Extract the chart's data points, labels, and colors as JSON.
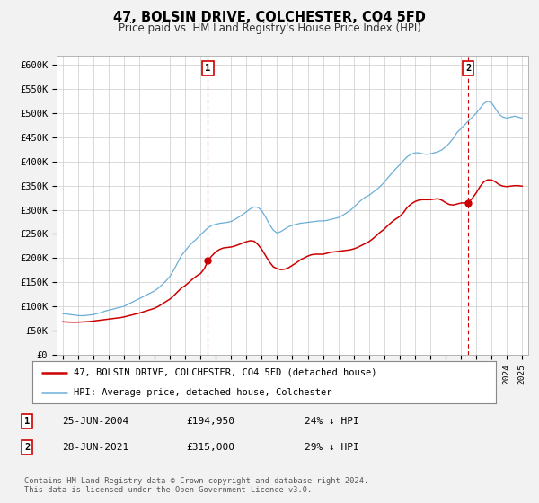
{
  "title": "47, BOLSIN DRIVE, COLCHESTER, CO4 5FD",
  "subtitle": "Price paid vs. HM Land Registry's House Price Index (HPI)",
  "xlim": [
    1994.6,
    2025.4
  ],
  "ylim": [
    0,
    620000
  ],
  "yticks": [
    0,
    50000,
    100000,
    150000,
    200000,
    250000,
    300000,
    350000,
    400000,
    450000,
    500000,
    550000,
    600000
  ],
  "ytick_labels": [
    "£0",
    "£50K",
    "£100K",
    "£150K",
    "£200K",
    "£250K",
    "£300K",
    "£350K",
    "£400K",
    "£450K",
    "£500K",
    "£550K",
    "£600K"
  ],
  "hpi_color": "#6baed6",
  "price_color": "#cc0000",
  "sale1_date": 2004.484,
  "sale1_price": 194950,
  "sale2_date": 2021.487,
  "sale2_price": 315000,
  "legend_label1": "47, BOLSIN DRIVE, COLCHESTER, CO4 5FD (detached house)",
  "legend_label2": "HPI: Average price, detached house, Colchester",
  "annotation1_label": "25-JUN-2004",
  "annotation1_price": "£194,950",
  "annotation1_pct": "24% ↓ HPI",
  "annotation2_label": "28-JUN-2021",
  "annotation2_price": "£315,000",
  "annotation2_pct": "29% ↓ HPI",
  "footer": "Contains HM Land Registry data © Crown copyright and database right 2024.\nThis data is licensed under the Open Government Licence v3.0.",
  "bg_color": "#f2f2f2",
  "plot_bg_color": "#ffffff",
  "grid_color": "#cccccc",
  "hpi_data": [
    [
      1995.0,
      85000
    ],
    [
      1995.25,
      84000
    ],
    [
      1995.5,
      83000
    ],
    [
      1995.75,
      82000
    ],
    [
      1996.0,
      81000
    ],
    [
      1996.25,
      80500
    ],
    [
      1996.5,
      81000
    ],
    [
      1996.75,
      82000
    ],
    [
      1997.0,
      83000
    ],
    [
      1997.25,
      85000
    ],
    [
      1997.5,
      87000
    ],
    [
      1997.75,
      90000
    ],
    [
      1998.0,
      92000
    ],
    [
      1998.25,
      94000
    ],
    [
      1998.5,
      96000
    ],
    [
      1998.75,
      98000
    ],
    [
      1999.0,
      100000
    ],
    [
      1999.25,
      104000
    ],
    [
      1999.5,
      108000
    ],
    [
      1999.75,
      112000
    ],
    [
      2000.0,
      116000
    ],
    [
      2000.25,
      120000
    ],
    [
      2000.5,
      124000
    ],
    [
      2000.75,
      128000
    ],
    [
      2001.0,
      132000
    ],
    [
      2001.25,
      138000
    ],
    [
      2001.5,
      145000
    ],
    [
      2001.75,
      153000
    ],
    [
      2002.0,
      162000
    ],
    [
      2002.25,
      175000
    ],
    [
      2002.5,
      190000
    ],
    [
      2002.75,
      205000
    ],
    [
      2003.0,
      215000
    ],
    [
      2003.25,
      225000
    ],
    [
      2003.5,
      233000
    ],
    [
      2003.75,
      240000
    ],
    [
      2004.0,
      248000
    ],
    [
      2004.25,
      256000
    ],
    [
      2004.5,
      263000
    ],
    [
      2004.75,
      268000
    ],
    [
      2005.0,
      270000
    ],
    [
      2005.25,
      272000
    ],
    [
      2005.5,
      273000
    ],
    [
      2005.75,
      274000
    ],
    [
      2006.0,
      276000
    ],
    [
      2006.25,
      280000
    ],
    [
      2006.5,
      285000
    ],
    [
      2006.75,
      290000
    ],
    [
      2007.0,
      296000
    ],
    [
      2007.25,
      302000
    ],
    [
      2007.5,
      306000
    ],
    [
      2007.75,
      305000
    ],
    [
      2008.0,
      298000
    ],
    [
      2008.25,
      285000
    ],
    [
      2008.5,
      270000
    ],
    [
      2008.75,
      258000
    ],
    [
      2009.0,
      252000
    ],
    [
      2009.25,
      255000
    ],
    [
      2009.5,
      260000
    ],
    [
      2009.75,
      265000
    ],
    [
      2010.0,
      268000
    ],
    [
      2010.25,
      270000
    ],
    [
      2010.5,
      272000
    ],
    [
      2010.75,
      273000
    ],
    [
      2011.0,
      274000
    ],
    [
      2011.25,
      275000
    ],
    [
      2011.5,
      276000
    ],
    [
      2011.75,
      277000
    ],
    [
      2012.0,
      277000
    ],
    [
      2012.25,
      278000
    ],
    [
      2012.5,
      280000
    ],
    [
      2012.75,
      282000
    ],
    [
      2013.0,
      284000
    ],
    [
      2013.25,
      288000
    ],
    [
      2013.5,
      293000
    ],
    [
      2013.75,
      298000
    ],
    [
      2014.0,
      305000
    ],
    [
      2014.25,
      313000
    ],
    [
      2014.5,
      320000
    ],
    [
      2014.75,
      326000
    ],
    [
      2015.0,
      330000
    ],
    [
      2015.25,
      336000
    ],
    [
      2015.5,
      342000
    ],
    [
      2015.75,
      349000
    ],
    [
      2016.0,
      357000
    ],
    [
      2016.25,
      367000
    ],
    [
      2016.5,
      376000
    ],
    [
      2016.75,
      385000
    ],
    [
      2017.0,
      393000
    ],
    [
      2017.25,
      402000
    ],
    [
      2017.5,
      410000
    ],
    [
      2017.75,
      415000
    ],
    [
      2018.0,
      418000
    ],
    [
      2018.25,
      418000
    ],
    [
      2018.5,
      416000
    ],
    [
      2018.75,
      415000
    ],
    [
      2019.0,
      416000
    ],
    [
      2019.25,
      418000
    ],
    [
      2019.5,
      420000
    ],
    [
      2019.75,
      424000
    ],
    [
      2020.0,
      430000
    ],
    [
      2020.25,
      438000
    ],
    [
      2020.5,
      448000
    ],
    [
      2020.75,
      460000
    ],
    [
      2021.0,
      468000
    ],
    [
      2021.25,
      476000
    ],
    [
      2021.5,
      484000
    ],
    [
      2021.75,
      492000
    ],
    [
      2022.0,
      500000
    ],
    [
      2022.25,
      510000
    ],
    [
      2022.5,
      520000
    ],
    [
      2022.75,
      525000
    ],
    [
      2023.0,
      522000
    ],
    [
      2023.25,
      510000
    ],
    [
      2023.5,
      498000
    ],
    [
      2023.75,
      492000
    ],
    [
      2024.0,
      490000
    ],
    [
      2024.25,
      492000
    ],
    [
      2024.5,
      494000
    ],
    [
      2024.75,
      492000
    ],
    [
      2025.0,
      490000
    ]
  ],
  "price_data": [
    [
      1995.0,
      68000
    ],
    [
      1995.25,
      67500
    ],
    [
      1995.5,
      67200
    ],
    [
      1995.75,
      67000
    ],
    [
      1996.0,
      67200
    ],
    [
      1996.25,
      67500
    ],
    [
      1996.5,
      68000
    ],
    [
      1996.75,
      68500
    ],
    [
      1997.0,
      69500
    ],
    [
      1997.25,
      70500
    ],
    [
      1997.5,
      71500
    ],
    [
      1997.75,
      72500
    ],
    [
      1998.0,
      73500
    ],
    [
      1998.25,
      74500
    ],
    [
      1998.5,
      75500
    ],
    [
      1998.75,
      76500
    ],
    [
      1999.0,
      78000
    ],
    [
      1999.25,
      80000
    ],
    [
      1999.5,
      82000
    ],
    [
      1999.75,
      84000
    ],
    [
      2000.0,
      86000
    ],
    [
      2000.25,
      88500
    ],
    [
      2000.5,
      91000
    ],
    [
      2000.75,
      93500
    ],
    [
      2001.0,
      96000
    ],
    [
      2001.25,
      100000
    ],
    [
      2001.5,
      105000
    ],
    [
      2001.75,
      110000
    ],
    [
      2002.0,
      115000
    ],
    [
      2002.25,
      122000
    ],
    [
      2002.5,
      130000
    ],
    [
      2002.75,
      138000
    ],
    [
      2003.0,
      143000
    ],
    [
      2003.25,
      150000
    ],
    [
      2003.5,
      157000
    ],
    [
      2003.75,
      163000
    ],
    [
      2004.0,
      168000
    ],
    [
      2004.25,
      178000
    ],
    [
      2004.484,
      194950
    ],
    [
      2004.75,
      205000
    ],
    [
      2005.0,
      213000
    ],
    [
      2005.25,
      218000
    ],
    [
      2005.5,
      221000
    ],
    [
      2005.75,
      222000
    ],
    [
      2006.0,
      223000
    ],
    [
      2006.25,
      225000
    ],
    [
      2006.5,
      228000
    ],
    [
      2006.75,
      231000
    ],
    [
      2007.0,
      234000
    ],
    [
      2007.25,
      236000
    ],
    [
      2007.5,
      235000
    ],
    [
      2007.75,
      228000
    ],
    [
      2008.0,
      218000
    ],
    [
      2008.25,
      205000
    ],
    [
      2008.5,
      192000
    ],
    [
      2008.75,
      182000
    ],
    [
      2009.0,
      178000
    ],
    [
      2009.25,
      176000
    ],
    [
      2009.5,
      177000
    ],
    [
      2009.75,
      180000
    ],
    [
      2010.0,
      185000
    ],
    [
      2010.25,
      190000
    ],
    [
      2010.5,
      196000
    ],
    [
      2010.75,
      200000
    ],
    [
      2011.0,
      204000
    ],
    [
      2011.25,
      207000
    ],
    [
      2011.5,
      208000
    ],
    [
      2011.75,
      208000
    ],
    [
      2012.0,
      208000
    ],
    [
      2012.25,
      210000
    ],
    [
      2012.5,
      212000
    ],
    [
      2012.75,
      213000
    ],
    [
      2013.0,
      214000
    ],
    [
      2013.25,
      215000
    ],
    [
      2013.5,
      216000
    ],
    [
      2013.75,
      217000
    ],
    [
      2014.0,
      219000
    ],
    [
      2014.25,
      222000
    ],
    [
      2014.5,
      226000
    ],
    [
      2014.75,
      230000
    ],
    [
      2015.0,
      234000
    ],
    [
      2015.25,
      240000
    ],
    [
      2015.5,
      247000
    ],
    [
      2015.75,
      254000
    ],
    [
      2016.0,
      260000
    ],
    [
      2016.25,
      268000
    ],
    [
      2016.5,
      275000
    ],
    [
      2016.75,
      281000
    ],
    [
      2017.0,
      286000
    ],
    [
      2017.25,
      294000
    ],
    [
      2017.5,
      305000
    ],
    [
      2017.75,
      312000
    ],
    [
      2018.0,
      317000
    ],
    [
      2018.25,
      320000
    ],
    [
      2018.5,
      321000
    ],
    [
      2018.75,
      321000
    ],
    [
      2019.0,
      321000
    ],
    [
      2019.25,
      322000
    ],
    [
      2019.5,
      323000
    ],
    [
      2019.75,
      320000
    ],
    [
      2020.0,
      315000
    ],
    [
      2020.25,
      311000
    ],
    [
      2020.5,
      310000
    ],
    [
      2020.75,
      312000
    ],
    [
      2021.0,
      314000
    ],
    [
      2021.487,
      315000
    ],
    [
      2021.75,
      324000
    ],
    [
      2022.0,
      335000
    ],
    [
      2022.25,
      348000
    ],
    [
      2022.5,
      358000
    ],
    [
      2022.75,
      362000
    ],
    [
      2023.0,
      362000
    ],
    [
      2023.25,
      358000
    ],
    [
      2023.5,
      352000
    ],
    [
      2023.75,
      349000
    ],
    [
      2024.0,
      348000
    ],
    [
      2024.25,
      349000
    ],
    [
      2024.5,
      350000
    ],
    [
      2024.75,
      350000
    ],
    [
      2025.0,
      349000
    ]
  ]
}
